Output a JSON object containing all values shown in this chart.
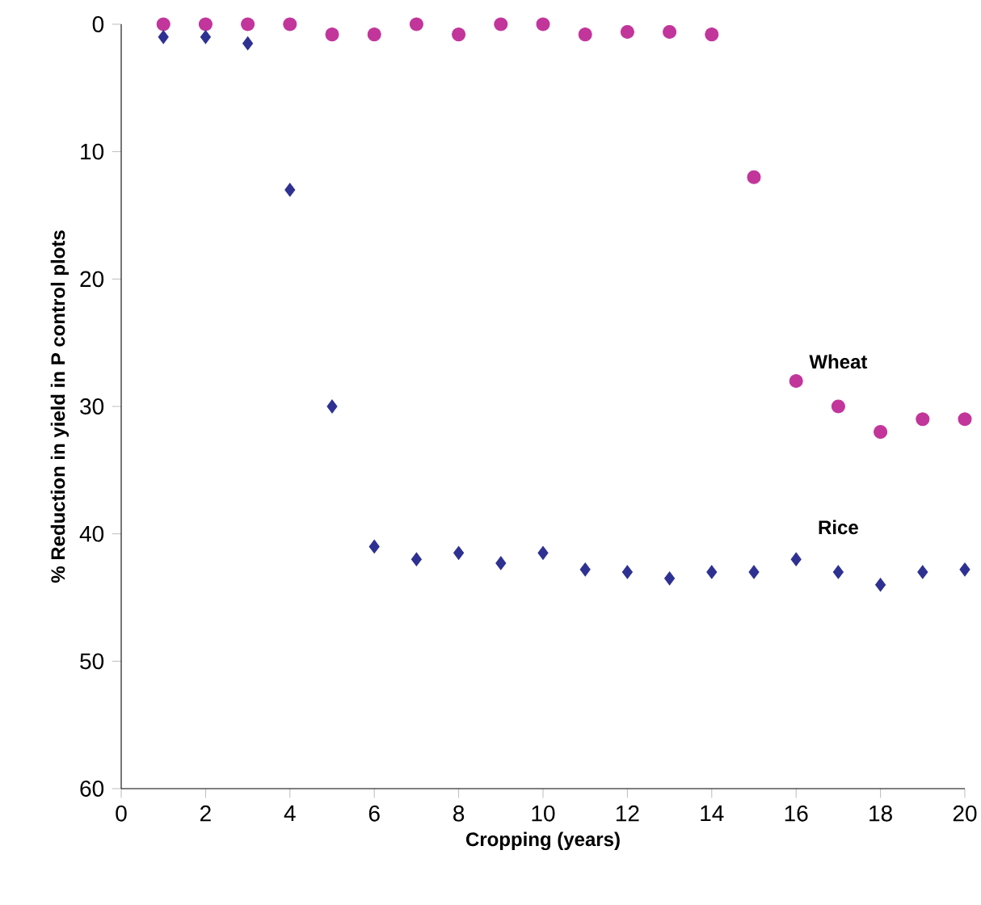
{
  "chart_data": {
    "type": "scatter",
    "xlabel": "Cropping (years)",
    "ylabel": "% Reduction in yield in P control plots",
    "x": [
      1,
      2,
      3,
      4,
      5,
      6,
      7,
      8,
      9,
      10,
      11,
      12,
      13,
      14,
      15,
      16,
      17,
      18,
      19,
      20
    ],
    "series": [
      {
        "name": "Wheat",
        "color": "#c2359b",
        "marker": "circle",
        "values": [
          0,
          0,
          0,
          0,
          0.8,
          0.8,
          0,
          0.8,
          0,
          0,
          0.8,
          0.6,
          0.6,
          0.8,
          12,
          28,
          30,
          32,
          31,
          31
        ]
      },
      {
        "name": "Rice",
        "color": "#2e3192",
        "marker": "diamond",
        "values": [
          1,
          1,
          1.5,
          13,
          30,
          41,
          42,
          41.5,
          42.3,
          41.5,
          42.8,
          43,
          43.5,
          43,
          43,
          42,
          43,
          44,
          43,
          42.8
        ]
      }
    ],
    "xlim": [
      0,
      20
    ],
    "xticks": [
      0,
      2,
      4,
      6,
      8,
      10,
      12,
      14,
      16,
      18,
      20
    ],
    "ylim": [
      60,
      0
    ],
    "yticks": [
      0,
      10,
      20,
      30,
      40,
      50,
      60
    ],
    "grid": false,
    "legend": false
  }
}
